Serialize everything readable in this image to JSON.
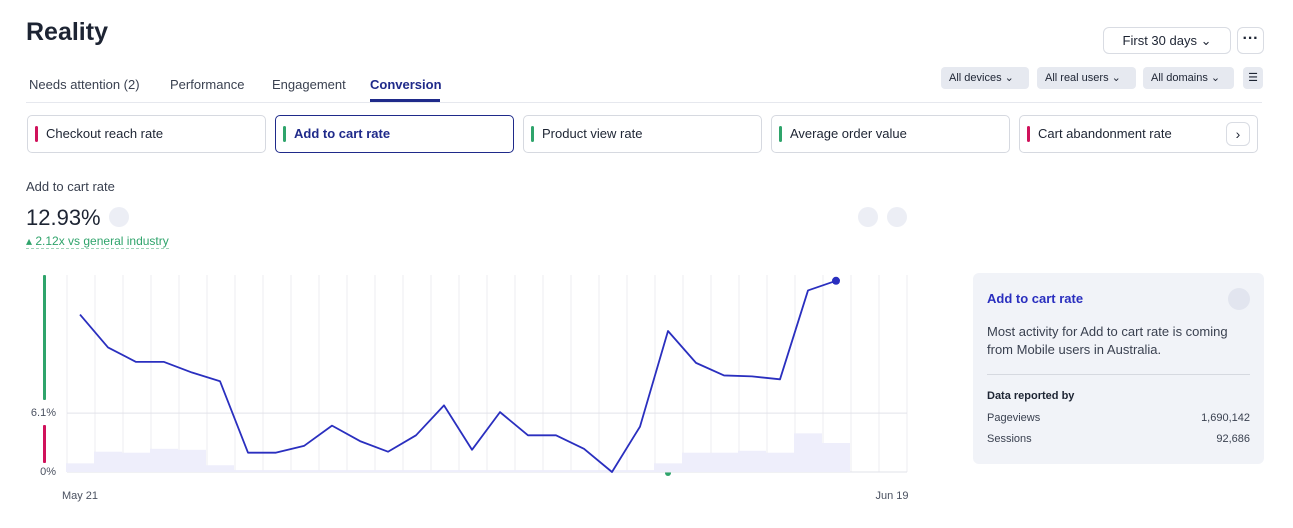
{
  "header": {
    "title": "Reality",
    "date_range": "First 30 days"
  },
  "tabs": [
    "Needs attention (2)",
    "Performance",
    "Engagement",
    "Conversion"
  ],
  "filters": [
    "All devices",
    "All real users",
    "All domains"
  ],
  "metric_cards": [
    {
      "label": "Checkout reach rate",
      "color": "#d0125b"
    },
    {
      "label": "Add to cart rate",
      "color": "#2fa46b"
    },
    {
      "label": "Product view rate",
      "color": "#2fa46b"
    },
    {
      "label": "Average order value",
      "color": "#2fa46b"
    },
    {
      "label": "Cart abandonment rate",
      "color": "#d0125b"
    }
  ],
  "metric": {
    "label": "Add to cart rate",
    "value": "12.93%",
    "comparison": "2.12x vs general industry"
  },
  "chart_data": {
    "type": "line",
    "color": "#2a2fbf",
    "background_color": "#eeeefb",
    "categories": [
      "May 21",
      null,
      null,
      null,
      null,
      null,
      null,
      null,
      null,
      null,
      null,
      null,
      null,
      null,
      null,
      null,
      null,
      null,
      null,
      null,
      null,
      null,
      null,
      null,
      null,
      null,
      null,
      null,
      null,
      "Jun 19"
    ],
    "values": [
      16.3,
      12.9,
      11.4,
      11.4,
      10.3,
      9.4,
      2.0,
      2.0,
      2.7,
      4.8,
      3.2,
      2.1,
      3.8,
      6.9,
      2.3,
      6.2,
      3.8,
      3.8,
      2.4,
      0,
      4.7,
      14.6,
      11.3,
      10.0,
      9.9,
      9.6,
      18.8,
      19.8,
      null,
      null
    ],
    "background_values": [
      0.9,
      2.1,
      2.0,
      2.4,
      2.3,
      0.7,
      0.2,
      0.2,
      0.2,
      0.2,
      0.2,
      0.2,
      0.2,
      0.2,
      0.2,
      0.2,
      0.2,
      0.2,
      0.2,
      0.2,
      0.2,
      0.9,
      2.0,
      2.0,
      2.2,
      2.0,
      4.0,
      3.0,
      null,
      null
    ],
    "ylim": [
      0,
      20.4
    ],
    "yticks": [
      {
        "value": 0,
        "label": "0%"
      },
      {
        "value": 6.1,
        "label": "6.1%"
      }
    ],
    "grid": true
  },
  "panel": {
    "title": "Add to cart rate",
    "text": "Most activity for Add to cart rate is coming from Mobile users in Australia.",
    "section": "Data reported by",
    "rows": [
      [
        "Pageviews",
        "1,690,142"
      ],
      [
        "Sessions",
        "92,686"
      ]
    ]
  }
}
